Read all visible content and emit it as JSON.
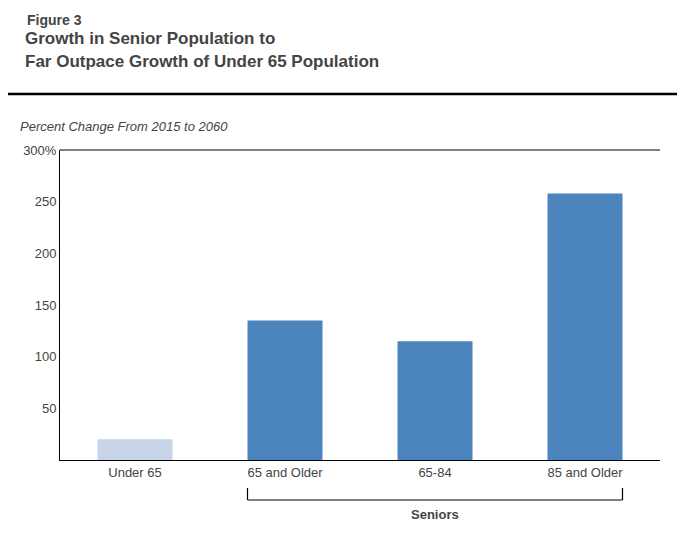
{
  "chart_data": {
    "type": "bar",
    "title": "Growth in Senior Population to\nFar Outpace Growth of Under 65 Population",
    "subtitle": "Percent Change From 2015 to 2060",
    "categories": [
      "Under 65",
      "65 and Older",
      "65-84",
      "85 and Older"
    ],
    "values": [
      20,
      135,
      115,
      258
    ],
    "colors": [
      "#c7d4e8",
      "#4c84be",
      "#4c84be",
      "#4c84be"
    ],
    "ylim": [
      0,
      300
    ],
    "yticks": [
      50,
      100,
      150,
      200,
      250,
      {
        "value": 300,
        "label": "300%"
      }
    ],
    "grid": false,
    "annotations": [
      {
        "text": "Figure 3"
      },
      {
        "text": "Seniors",
        "categories": [
          "65 and Older",
          "65-84",
          "85 and Older"
        ]
      }
    ]
  }
}
